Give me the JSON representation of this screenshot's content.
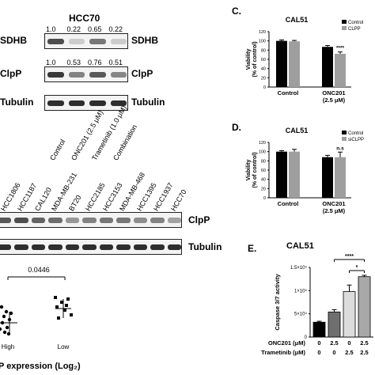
{
  "panelA": {
    "title": "HCC70",
    "rows": [
      {
        "label": "SDHB",
        "values": [
          "1.0",
          "0.22",
          "0.65",
          "0.22"
        ],
        "intensity": [
          0.75,
          0.15,
          0.55,
          0.15
        ]
      },
      {
        "label": "ClpP",
        "values": [
          "1.0",
          "0.53",
          "0.76",
          "0.51"
        ],
        "intensity": [
          0.85,
          0.5,
          0.7,
          0.48
        ]
      },
      {
        "label": "Tubulin",
        "values": [],
        "intensity": [
          0.9,
          0.9,
          0.9,
          0.9
        ]
      }
    ],
    "lanes": [
      "Control",
      "ONC201 (2.5 μM)",
      "Trametinib (1.0 μM)",
      "Combination"
    ]
  },
  "panelB": {
    "lanes": [
      "HCC1806",
      "HCC1187",
      "CAL120",
      "MDA-MB-231",
      "BT20",
      "HCC2185",
      "HCC3153",
      "MDA-MB-468",
      "HCC1395",
      "HCC1937",
      "HCC70"
    ],
    "clpp_label": "ClpP",
    "tubulin_label": "Tubulin",
    "clpp_intensity": [
      0.7,
      0.75,
      0.65,
      0.6,
      0.4,
      0.5,
      0.55,
      0.55,
      0.45,
      0.5,
      0.35
    ],
    "tubulin_intensity": [
      0.9,
      0.9,
      0.9,
      0.9,
      0.9,
      0.9,
      0.9,
      0.9,
      0.9,
      0.9,
      0.9
    ]
  },
  "panelScatter": {
    "pvalue": "0.0446",
    "groups": [
      "High",
      "Low"
    ],
    "xlabel": "P expression (Log₂)"
  },
  "panelC": {
    "letter": "C.",
    "chart_data": {
      "type": "bar",
      "title": "CAL51",
      "ylabel": "Viability (% of control)",
      "categories": [
        "Control",
        "ONC201 (2.5 μM)"
      ],
      "series": [
        {
          "name": "Control",
          "values": [
            100,
            87
          ],
          "errors": [
            2,
            3
          ]
        },
        {
          "name": "CLPP",
          "values": [
            99,
            72
          ],
          "errors": [
            2,
            4
          ]
        }
      ],
      "ylim": [
        0,
        120
      ],
      "yticks": [
        "0",
        "20",
        "40",
        "60",
        "80",
        "100",
        "120"
      ],
      "annotations": [
        "****"
      ],
      "colors": [
        "#000000",
        "#9e9e9e"
      ]
    }
  },
  "panelD": {
    "letter": "D.",
    "chart_data": {
      "type": "bar",
      "title": "CAL51",
      "ylabel": "Viability (% of control)",
      "categories": [
        "Control",
        "ONC201 (2.5 μM)"
      ],
      "series": [
        {
          "name": "Control",
          "values": [
            100,
            88
          ],
          "errors": [
            2,
            4
          ]
        },
        {
          "name": "siCLPP",
          "values": [
            100,
            88
          ],
          "errors": [
            5,
            11
          ]
        }
      ],
      "ylim": [
        0,
        120
      ],
      "yticks": [
        "0",
        "20",
        "40",
        "60",
        "80",
        "100",
        "120"
      ],
      "annotations": [
        "n.s"
      ],
      "colors": [
        "#000000",
        "#9e9e9e"
      ]
    }
  },
  "panelE": {
    "letter": "E.",
    "chart_data": {
      "type": "bar",
      "title": "CAL51",
      "ylabel": "Caspase 3/7 activity",
      "values": [
        32000,
        54000,
        98000,
        130000
      ],
      "errors": [
        2000,
        5000,
        14000,
        3000
      ],
      "colors": [
        "#000000",
        "#6f6f6f",
        "#dcdcdc",
        "#a8a8a8"
      ],
      "ylim": [
        0,
        150000
      ],
      "yticks": [
        "0",
        "5×10⁴",
        "1×10⁵",
        "1.5×10⁵"
      ],
      "sig": [
        "****",
        "*"
      ],
      "conditions": [
        {
          "label": "ONC201 (μM)",
          "values": [
            "0",
            "2.5",
            "0",
            "2.5"
          ]
        },
        {
          "label": "Trametinib (μM)",
          "values": [
            "0",
            "0",
            "2.5",
            "2.5"
          ]
        }
      ]
    }
  }
}
